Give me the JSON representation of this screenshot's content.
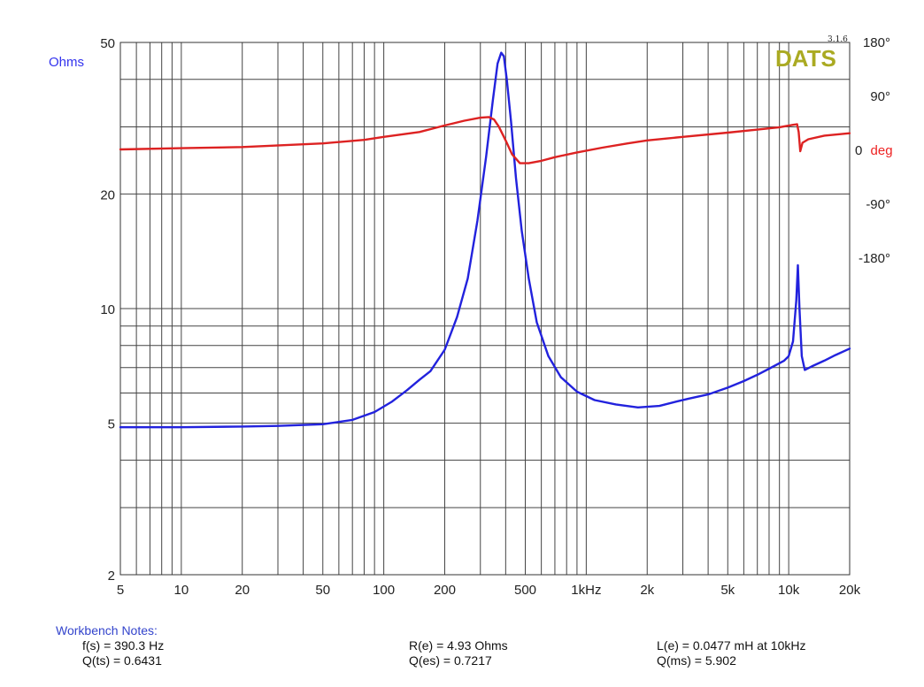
{
  "chart_data": {
    "type": "line",
    "title": "",
    "x_axis": {
      "scale": "log",
      "range": [
        5,
        20000
      ],
      "tick_labels": [
        {
          "value": 5,
          "label": "5"
        },
        {
          "value": 10,
          "label": "10"
        },
        {
          "value": 20,
          "label": "20"
        },
        {
          "value": 50,
          "label": "50"
        },
        {
          "value": 100,
          "label": "100"
        },
        {
          "value": 200,
          "label": "200"
        },
        {
          "value": 500,
          "label": "500"
        },
        {
          "value": 1000,
          "label": "1kHz"
        },
        {
          "value": 2000,
          "label": "2k"
        },
        {
          "value": 5000,
          "label": "5k"
        },
        {
          "value": 10000,
          "label": "10k"
        },
        {
          "value": 20000,
          "label": "20k"
        }
      ]
    },
    "y_left": {
      "label": "Ohms",
      "scale": "log",
      "range": [
        2,
        50
      ],
      "tick_labels": [
        {
          "value": 50,
          "label": "50"
        },
        {
          "value": 20,
          "label": "20"
        },
        {
          "value": 10,
          "label": "10"
        },
        {
          "value": 5,
          "label": "5"
        },
        {
          "value": 2,
          "label": "2"
        }
      ]
    },
    "y_right": {
      "label_value": "0",
      "label_unit": "deg",
      "tick_labels": [
        {
          "value": 180,
          "label": "180°"
        },
        {
          "value": 90,
          "label": "90°"
        },
        {
          "value": -90,
          "label": "-90°"
        },
        {
          "value": -180,
          "label": "-180°"
        }
      ]
    },
    "grid": true,
    "series": [
      {
        "key": "impedance",
        "axis": "left",
        "color": "#2222dd",
        "points": [
          [
            5,
            4.88
          ],
          [
            8,
            4.88
          ],
          [
            10,
            4.88
          ],
          [
            20,
            4.9
          ],
          [
            30,
            4.92
          ],
          [
            50,
            4.97
          ],
          [
            70,
            5.1
          ],
          [
            90,
            5.35
          ],
          [
            110,
            5.7
          ],
          [
            130,
            6.1
          ],
          [
            150,
            6.5
          ],
          [
            170,
            6.85
          ],
          [
            200,
            7.8
          ],
          [
            230,
            9.5
          ],
          [
            260,
            12
          ],
          [
            290,
            17
          ],
          [
            320,
            25
          ],
          [
            345,
            35
          ],
          [
            365,
            44
          ],
          [
            380,
            47
          ],
          [
            392,
            46
          ],
          [
            405,
            40
          ],
          [
            425,
            31
          ],
          [
            450,
            22
          ],
          [
            480,
            16
          ],
          [
            520,
            12
          ],
          [
            570,
            9.2
          ],
          [
            650,
            7.5
          ],
          [
            750,
            6.6
          ],
          [
            900,
            6.05
          ],
          [
            1100,
            5.75
          ],
          [
            1400,
            5.6
          ],
          [
            1800,
            5.5
          ],
          [
            2300,
            5.55
          ],
          [
            2800,
            5.7
          ],
          [
            3200,
            5.8
          ],
          [
            4000,
            5.95
          ],
          [
            5000,
            6.2
          ],
          [
            6000,
            6.45
          ],
          [
            7000,
            6.7
          ],
          [
            8000,
            6.95
          ],
          [
            9500,
            7.3
          ],
          [
            10000,
            7.5
          ],
          [
            10500,
            8.2
          ],
          [
            10900,
            10.5
          ],
          [
            11100,
            13
          ],
          [
            11300,
            10
          ],
          [
            11600,
            7.5
          ],
          [
            12000,
            6.9
          ],
          [
            13000,
            7.05
          ],
          [
            15000,
            7.3
          ],
          [
            17000,
            7.55
          ],
          [
            20000,
            7.85
          ]
        ]
      },
      {
        "key": "phase",
        "axis": "right",
        "color": "#dd2222",
        "points": [
          [
            5,
            0
          ],
          [
            10,
            2
          ],
          [
            20,
            4
          ],
          [
            50,
            10
          ],
          [
            80,
            16
          ],
          [
            100,
            21
          ],
          [
            150,
            29
          ],
          [
            200,
            40
          ],
          [
            250,
            48
          ],
          [
            300,
            53
          ],
          [
            330,
            54
          ],
          [
            350,
            50
          ],
          [
            370,
            38
          ],
          [
            400,
            15
          ],
          [
            430,
            -8
          ],
          [
            470,
            -23
          ],
          [
            520,
            -23
          ],
          [
            600,
            -19
          ],
          [
            700,
            -13
          ],
          [
            900,
            -5
          ],
          [
            1200,
            3
          ],
          [
            1600,
            10
          ],
          [
            2000,
            15
          ],
          [
            3000,
            21
          ],
          [
            5000,
            28
          ],
          [
            7000,
            33
          ],
          [
            9000,
            37
          ],
          [
            10500,
            41
          ],
          [
            11000,
            42
          ],
          [
            11200,
            29
          ],
          [
            11400,
            -3
          ],
          [
            11700,
            11
          ],
          [
            12500,
            17
          ],
          [
            15000,
            23
          ],
          [
            20000,
            27
          ]
        ]
      }
    ],
    "brand": "DATS",
    "version": "3.1.6"
  },
  "notes": {
    "title": "Workbench Notes:",
    "fs": "f(s) = 390.3 Hz",
    "qts": "Q(ts) = 0.6431",
    "re": "R(e) = 4.93 Ohms",
    "qes": "Q(es) = 0.7217",
    "le": "L(e) = 0.0477 mH at 10kHz",
    "qms": "Q(ms) = 5.902"
  }
}
